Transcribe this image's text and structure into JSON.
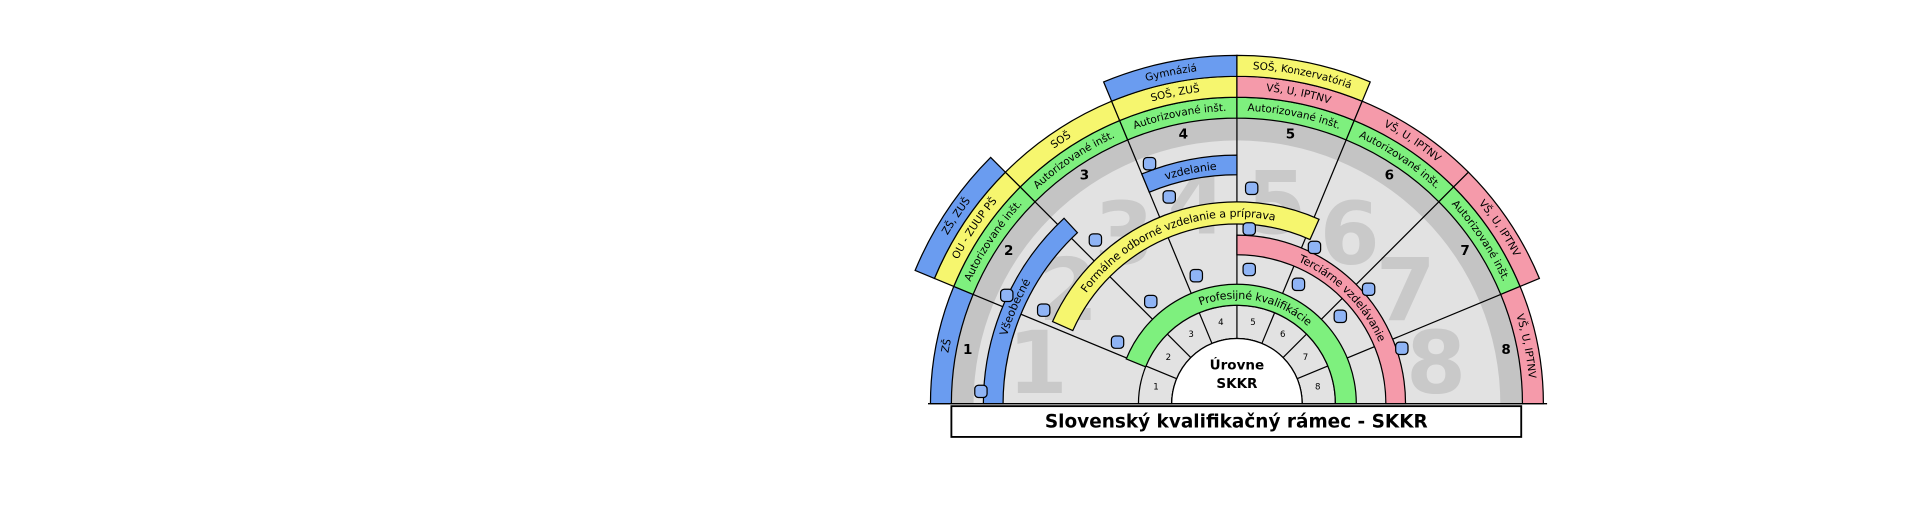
{
  "title": "Slovenský kvalifikačný rámec - SKKR",
  "center_label": [
    "Úrovne",
    "SKKR"
  ],
  "levels": [
    1,
    2,
    3,
    4,
    5,
    6,
    7,
    8
  ],
  "outer_bands": [
    [
      {
        "label": "ZŠ",
        "color": "#6a9cf0"
      }
    ],
    [
      {
        "label": "Autorizované inšt.",
        "color": "#7ef07e"
      },
      {
        "label": "OU - ZUUP PŠ",
        "color": "#f6f66e"
      },
      {
        "label": "ZŠ, ZUŠ",
        "color": "#6a9cf0"
      }
    ],
    [
      {
        "label": "Autorizované inšt.",
        "color": "#7ef07e"
      },
      {
        "label": "SOŠ",
        "color": "#f6f66e"
      }
    ],
    [
      {
        "label": "Autorizované inšt.",
        "color": "#7ef07e"
      },
      {
        "label": "SOŠ, ZUŠ",
        "color": "#f6f66e"
      },
      {
        "label": "Gymnáziá",
        "color": "#6a9cf0"
      }
    ],
    [
      {
        "label": "Autorizované inšt.",
        "color": "#7ef07e"
      },
      {
        "label": "VŠ, U, IPTNV",
        "color": "#f59aaa"
      },
      {
        "label": "SOŠ, Konzervatóriá",
        "color": "#f6f66e"
      }
    ],
    [
      {
        "label": "Autorizované inšt.",
        "color": "#7ef07e"
      },
      {
        "label": "VŠ, U, IPTNV",
        "color": "#f59aaa"
      }
    ],
    [
      {
        "label": "Autorizované inšt.",
        "color": "#7ef07e"
      },
      {
        "label": "VŠ, U, IPTNV",
        "color": "#f59aaa"
      }
    ],
    [
      {
        "label": "VŠ, U, IPTNV",
        "color": "#f59aaa"
      }
    ]
  ],
  "arcs": [
    {
      "label": "Všeobecné",
      "color": "#6a9cf0"
    },
    {
      "label": "vzdelanie",
      "color": "#6a9cf0"
    },
    {
      "label": "Formálne odborné vzdelanie a príprava",
      "color": "#f6f66e"
    },
    {
      "label": "Terciárne vzdelávanie",
      "color": "#f59aaa"
    },
    {
      "label": "Profesijné kvalifikácie",
      "color": "#7ef07e"
    }
  ]
}
